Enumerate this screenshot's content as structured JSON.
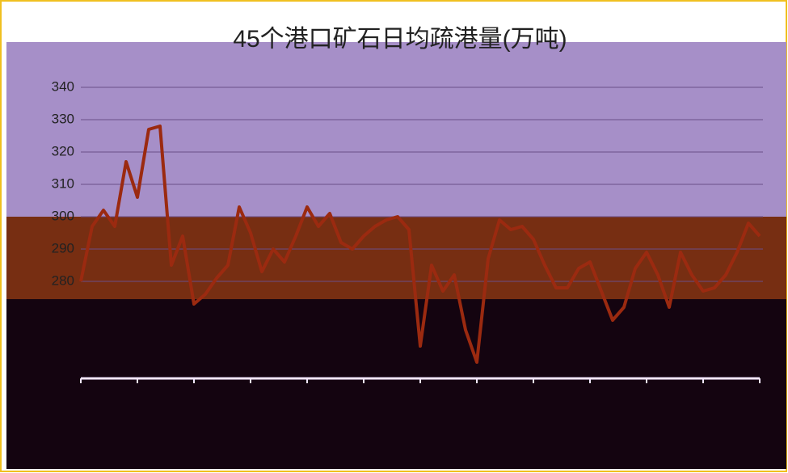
{
  "chart_data": {
    "type": "line",
    "title": "45个港口矿石日均疏港量(万吨)",
    "categories": [
      null,
      null,
      null,
      null,
      null,
      null,
      null,
      null,
      null,
      null,
      null,
      null,
      null,
      null,
      null,
      null,
      null,
      null,
      null,
      null,
      null,
      null,
      null,
      null,
      null,
      null,
      null,
      null,
      null,
      null,
      null,
      null,
      null,
      null,
      null,
      null,
      null,
      null,
      null,
      null,
      null,
      null,
      null,
      null,
      null,
      null,
      null,
      null,
      null,
      null,
      null,
      null,
      null,
      null,
      null,
      null,
      null,
      null,
      null,
      null,
      null
    ],
    "series": [
      {
        "color": "#9b2a10",
        "values": [
          280,
          297,
          302,
          297,
          317,
          306,
          327,
          328,
          285,
          294,
          273,
          276,
          281,
          285,
          303,
          295,
          283,
          290,
          286,
          294,
          303,
          297,
          301,
          292,
          290,
          294,
          297,
          299,
          300,
          296,
          260,
          285,
          277,
          282,
          265,
          255,
          287,
          299,
          296,
          297,
          293,
          285,
          278,
          278,
          284,
          286,
          277,
          268,
          272,
          284,
          289,
          282,
          272,
          289,
          282,
          277,
          278,
          282,
          289,
          298,
          294
        ]
      }
    ],
    "ylim": [
      250,
      340
    ],
    "yticks": [
      280,
      290,
      300,
      310,
      320,
      330,
      340
    ],
    "grid": true
  }
}
